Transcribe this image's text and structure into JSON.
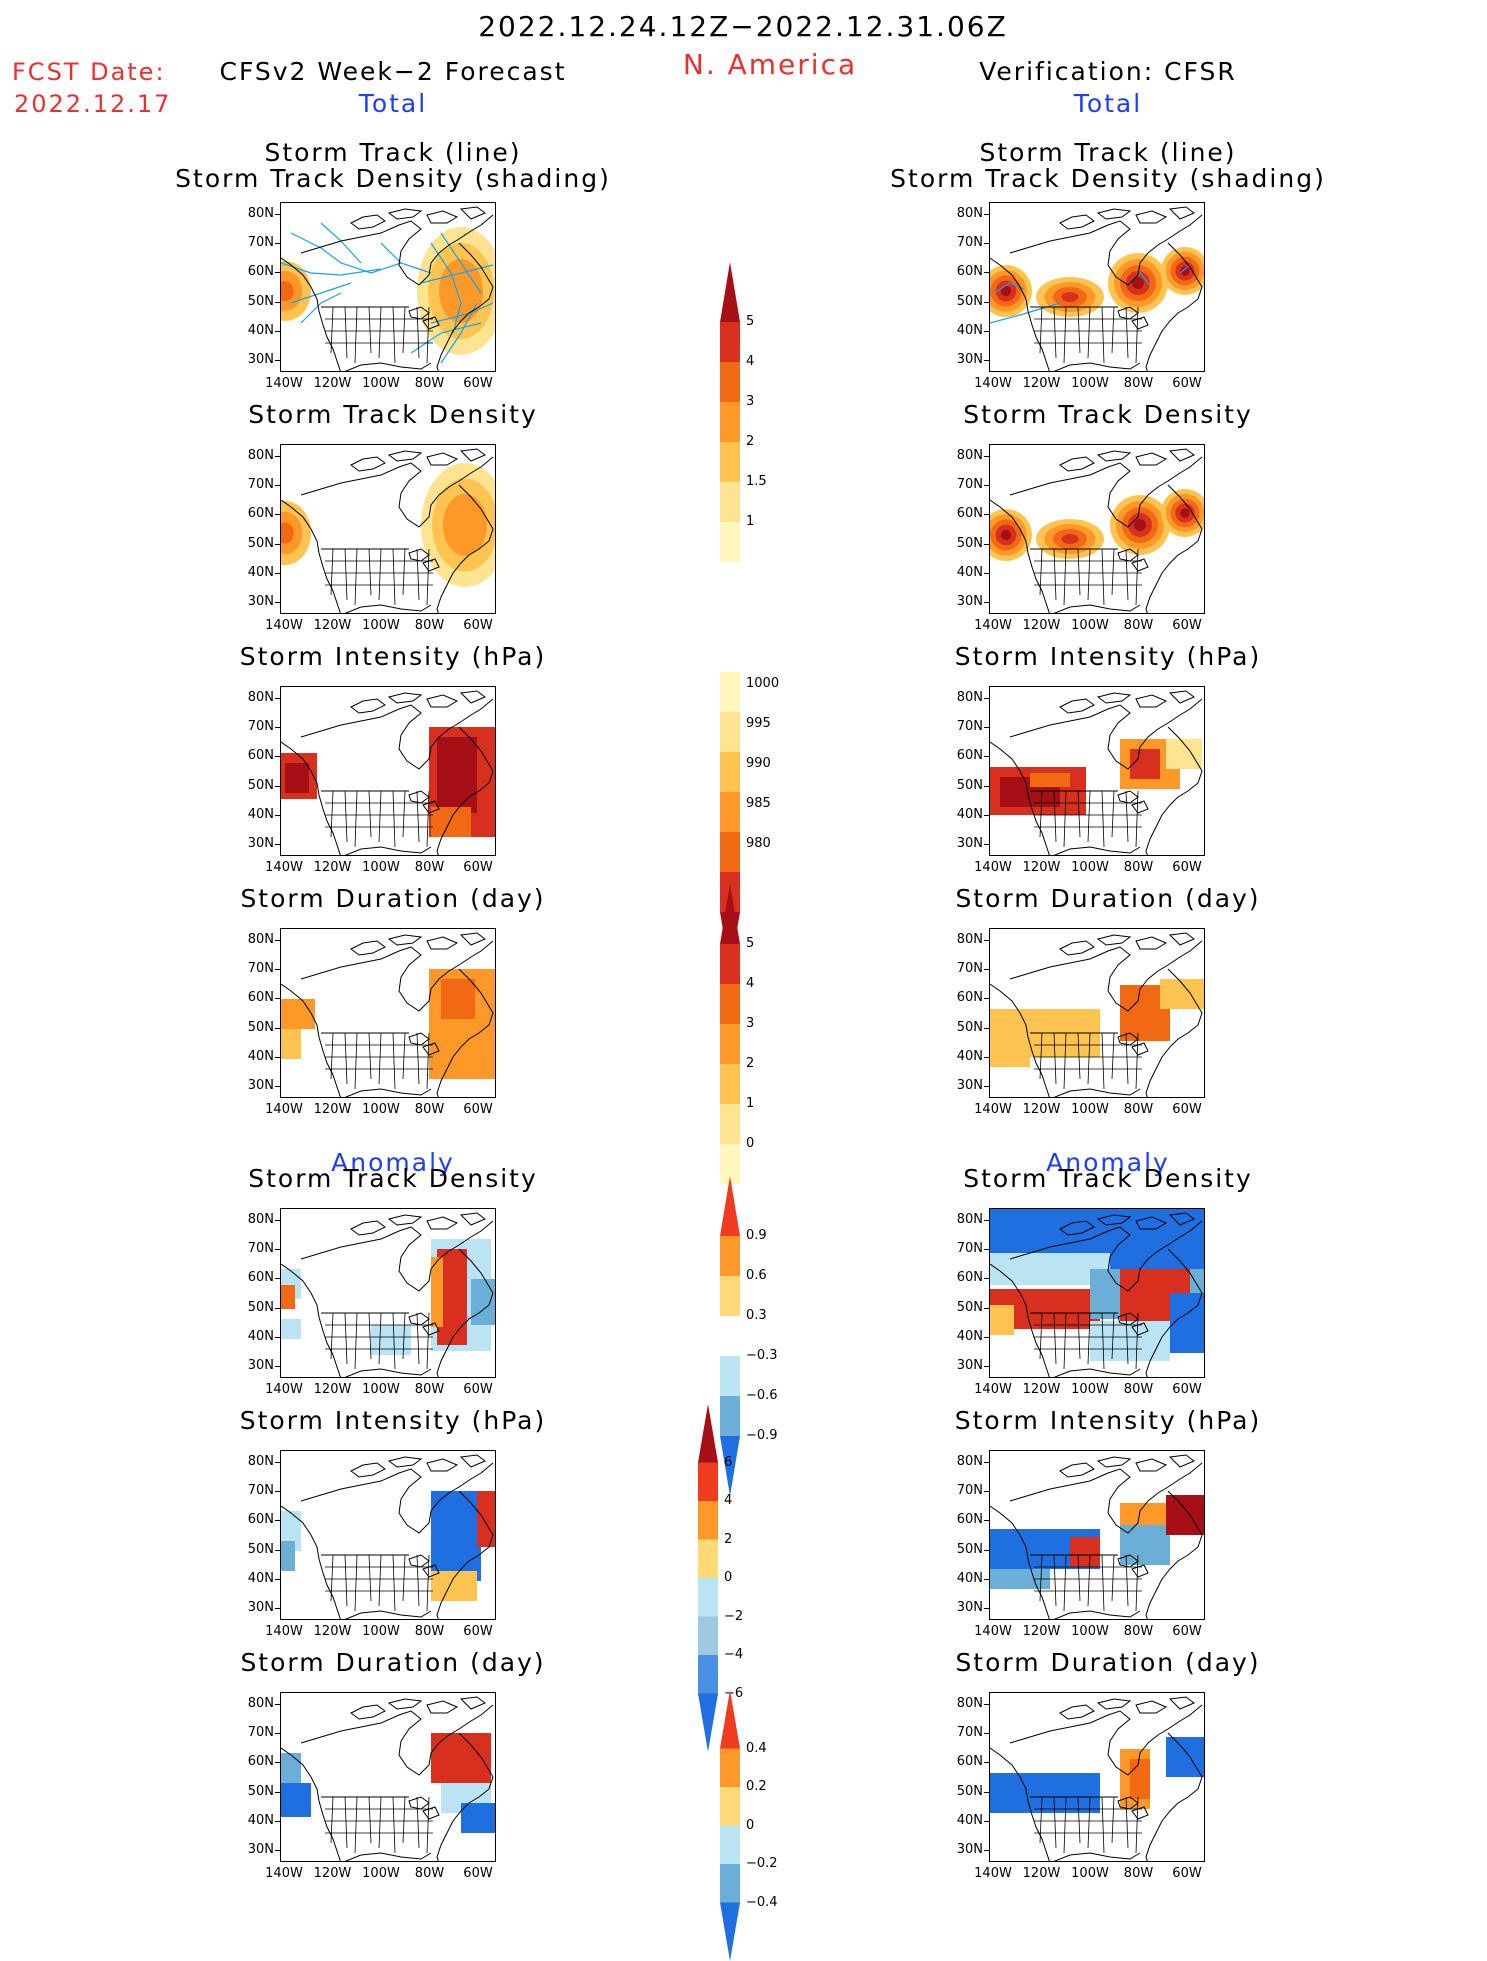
{
  "header": {
    "date_range": "2022.12.24.12Z−2022.12.31.06Z",
    "region": "N. America",
    "fcst_label": "FCST Date:",
    "fcst_date": "2022.12.17",
    "left_title": "CFSv2 Week−2 Forecast",
    "right_title": "Verification: CFSR",
    "total_left": "Total",
    "total_right": "Total",
    "anomaly_left": "Anomaly",
    "anomaly_right": "Anomaly"
  },
  "axes": {
    "lat_labels": [
      "80N",
      "70N",
      "60N",
      "50N",
      "40N",
      "30N"
    ],
    "lon_labels": [
      "140W",
      "120W",
      "100W",
      "80W",
      "60W"
    ]
  },
  "panels": {
    "storm_track": {
      "title1": "Storm Track (line)",
      "title2": "Storm Track Density (shading)"
    },
    "density": "Storm Track Density",
    "intensity": "Storm Intensity (hPa)",
    "duration": "Storm Duration (day)"
  },
  "colorbars": {
    "density_total": {
      "labels": [
        "5",
        "4",
        "3",
        "2",
        "1.5",
        "1"
      ],
      "colors": [
        "#a50f15",
        "#d7301f",
        "#f16913",
        "#fe9929",
        "#fec44f",
        "#fee391",
        "#fff7bc"
      ]
    },
    "intensity_total": {
      "labels": [
        "1000",
        "995",
        "990",
        "985",
        "980"
      ],
      "colors": [
        "#fff7bc",
        "#fee391",
        "#fec44f",
        "#fe9929",
        "#f16913",
        "#d7301f",
        "#a50f15"
      ]
    },
    "duration_total": {
      "labels": [
        "5",
        "4",
        "3",
        "2",
        "1",
        "0"
      ],
      "colors": [
        "#a50f15",
        "#d7301f",
        "#f16913",
        "#fe9929",
        "#fec44f",
        "#fee391",
        "#fff7bc"
      ]
    },
    "density_anom": {
      "labels": [
        "0.9",
        "0.6",
        "0.3",
        "−0.3",
        "−0.6",
        "−0.9"
      ],
      "colors": [
        "#f03b20",
        "#fe9929",
        "#fed976",
        "#ffffff",
        "#bae4f3",
        "#6baed6",
        "#1f6fe0"
      ]
    },
    "intensity_anom": {
      "labels": [
        "6",
        "4",
        "2",
        "0",
        "−2",
        "−4",
        "−6"
      ],
      "colors": [
        "#a50f15",
        "#f03b20",
        "#fe9929",
        "#fed976",
        "#bae4f3",
        "#9ecae1",
        "#4a90e2",
        "#1f6fe0"
      ]
    },
    "duration_anom": {
      "labels": [
        "0.4",
        "0.2",
        "0",
        "−0.2",
        "−0.4"
      ],
      "colors": [
        "#f03b20",
        "#fe9929",
        "#fed976",
        "#bae4f3",
        "#6baed6",
        "#1f6fe0"
      ]
    }
  },
  "palette": {
    "dark_red": "#a50f15",
    "red": "#d7301f",
    "orange": "#f16913",
    "amber": "#fe9929",
    "yellow": "#fec44f",
    "pale": "#fee391",
    "light_blue": "#bae4f3",
    "mid_blue": "#6baed6",
    "blue": "#1f6fe0",
    "track_line": "#1fa0e8"
  }
}
